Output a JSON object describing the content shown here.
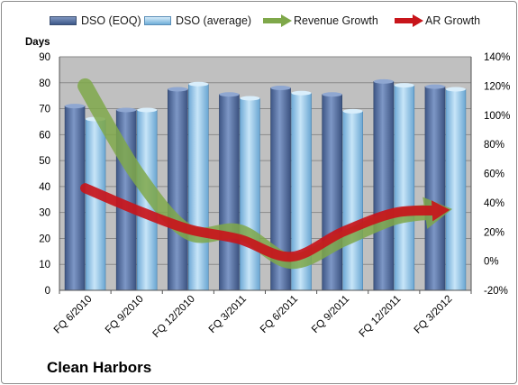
{
  "company_name": "Clean Harbors",
  "legend": {
    "eoq": "DSO (EOQ)",
    "avg": "DSO (average)",
    "rev": "Revenue Growth",
    "ar": "AR Growth"
  },
  "colors": {
    "plot_background": "#c0c0c0",
    "eoq_bar": "#4a6597",
    "avg_bar": "#9dcbec",
    "revenue_line": "#7fa84a",
    "ar_line": "#c8151b"
  },
  "chart_data": {
    "type": "bar",
    "ylabel": "Days",
    "categories": [
      "FQ 6/2010",
      "FQ 9/2010",
      "FQ 12/2010",
      "FQ 3/2011",
      "FQ 6/2011",
      "FQ 9/2011",
      "FQ 12/2011",
      "FQ 3/2012"
    ],
    "ylim": [
      0,
      90
    ],
    "y_ticks": [
      0,
      10,
      20,
      30,
      40,
      50,
      60,
      70,
      80,
      90
    ],
    "y2lim": [
      -20,
      140
    ],
    "y2_ticks": [
      "-20%",
      "0%",
      "20%",
      "40%",
      "60%",
      "80%",
      "100%",
      "120%",
      "140%"
    ],
    "series": [
      {
        "name": "DSO (EOQ)",
        "type": "bar",
        "axis": "left",
        "values": [
          71,
          69.5,
          77.5,
          75.5,
          78,
          75.5,
          80.5,
          78.5
        ]
      },
      {
        "name": "DSO (average)",
        "type": "bar",
        "axis": "left",
        "values": [
          66,
          69.5,
          79.5,
          74,
          76,
          69,
          79,
          77.5
        ]
      },
      {
        "name": "Revenue Growth",
        "type": "line",
        "axis": "right",
        "values": [
          120,
          60,
          20,
          20,
          0,
          15,
          30,
          35
        ]
      },
      {
        "name": "AR Growth",
        "type": "line",
        "axis": "right",
        "values": [
          50,
          35,
          22,
          15,
          3,
          20,
          33,
          35
        ]
      }
    ],
    "grid": true,
    "legend_position": "top"
  }
}
